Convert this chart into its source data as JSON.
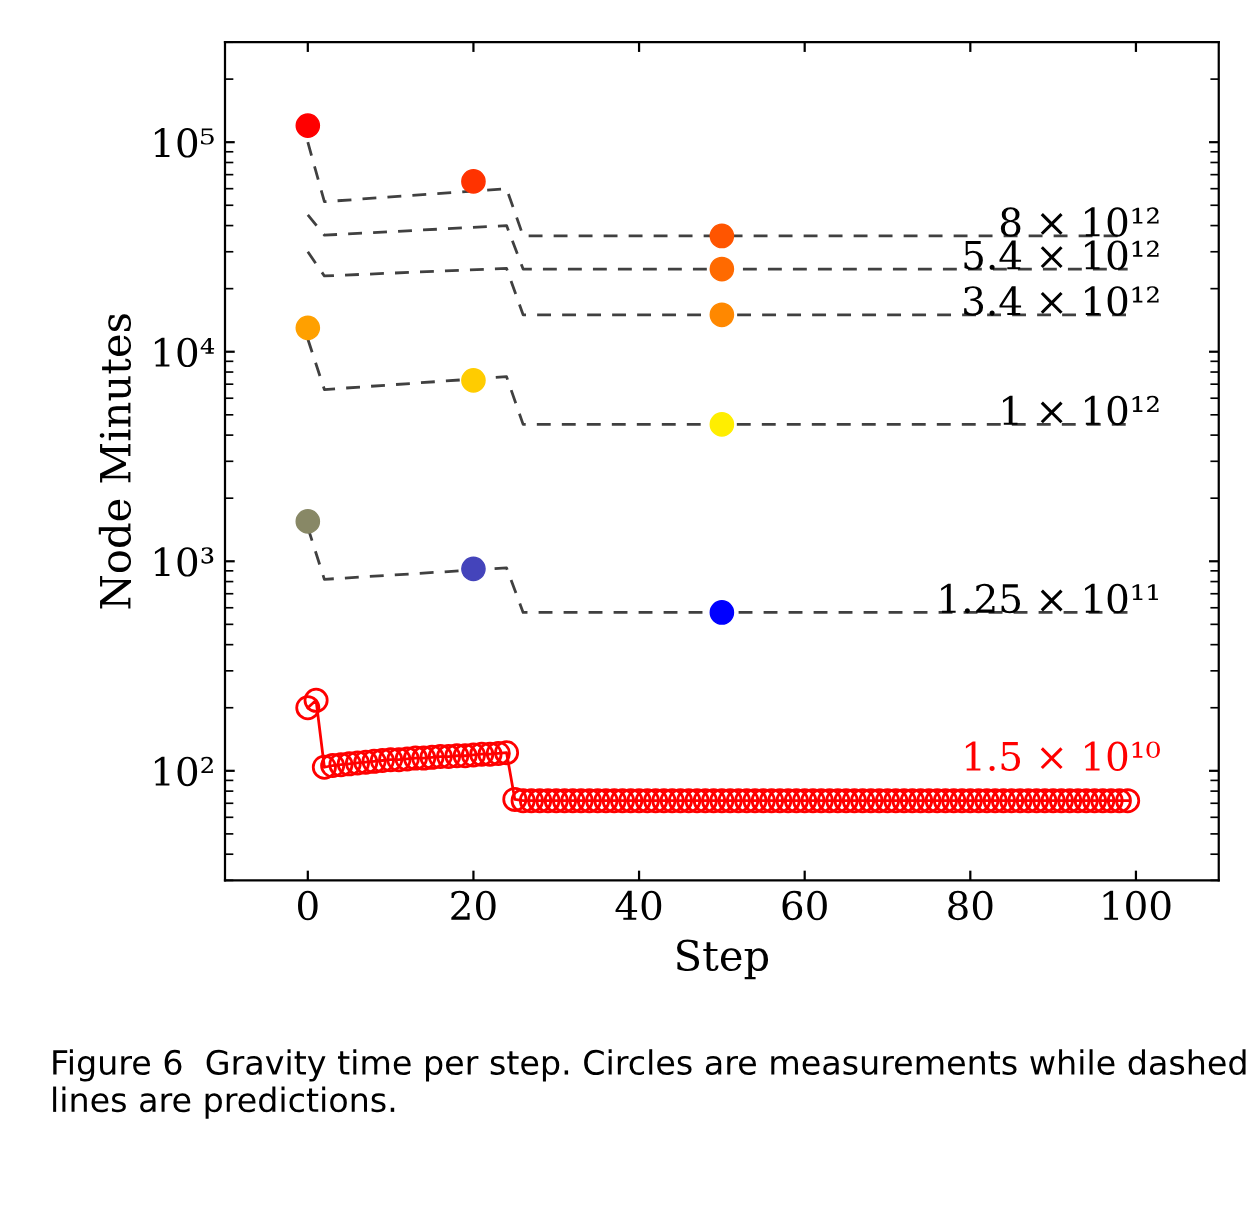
{
  "chart_data": {
    "type": "line",
    "xlabel": "Step",
    "ylabel": "Node Minutes",
    "annotations": [
      "Figure 6  Gravity time per step. Circles are measurements while dashed lines are predictions."
    ],
    "log": "y",
    "xlim": [
      -10,
      110
    ],
    "xticks": [
      0,
      20,
      40,
      60,
      80,
      100
    ],
    "ylim": [
      30,
      300000
    ],
    "yticks": [
      {
        "value": 100,
        "label": "10²"
      },
      {
        "value": 1000,
        "label": "10³"
      },
      {
        "value": 10000,
        "label": "10⁴"
      },
      {
        "value": 100000,
        "label": "10⁵"
      }
    ],
    "grid": false,
    "legend": false,
    "series": [
      {
        "name": "8 × 10¹²",
        "line_style": "dashed",
        "marker": "none",
        "color": "#404040",
        "x": [
          0,
          2,
          24,
          26,
          99
        ],
        "values": [
          100000,
          52000,
          60000,
          35700,
          35700
        ]
      },
      {
        "name": "5.4 × 10¹²",
        "line_style": "dashed",
        "marker": "none",
        "color": "#404040",
        "x": [
          0,
          2,
          24,
          26,
          99
        ],
        "values": [
          45000,
          36000,
          40000,
          24800,
          24800
        ]
      },
      {
        "name": "3.4 × 10¹²",
        "line_style": "dashed",
        "marker": "none",
        "color": "#404040",
        "x": [
          0,
          2,
          24,
          26,
          99
        ],
        "values": [
          30000,
          23000,
          25000,
          15000,
          15000
        ]
      },
      {
        "name": "1 × 10¹²",
        "line_style": "dashed",
        "marker": "none",
        "color": "#404040",
        "x": [
          0,
          2,
          24,
          26,
          99
        ],
        "values": [
          11500,
          6600,
          7600,
          4500,
          4500
        ]
      },
      {
        "name": "1.25 × 10¹¹",
        "line_style": "dashed",
        "marker": "none",
        "color": "#404040",
        "x": [
          0,
          2,
          24,
          26,
          99
        ],
        "values": [
          1450,
          820,
          930,
          570,
          570
        ]
      },
      {
        "type": "scatter",
        "marker": "circle",
        "x": [
          0,
          20,
          50,
          50,
          50,
          0,
          20,
          50,
          0,
          20,
          50
        ],
        "values": [
          120000,
          65000,
          35700,
          24800,
          15000,
          13000,
          7300,
          4500,
          1550,
          920,
          570
        ],
        "colors": [
          "#ff0000",
          "#ff3300",
          "#ff5500",
          "#ff6a00",
          "#ff8800",
          "#ffa000",
          "#ffcc00",
          "#ffee00",
          "#888866",
          "#4444bb",
          "#0000ff"
        ]
      },
      {
        "name": "1.5 × 10¹⁰",
        "line_style": "solid",
        "marker": "circle",
        "color": "#ff0000",
        "x": [
          0,
          1,
          2,
          3,
          4,
          5,
          6,
          7,
          8,
          9,
          10,
          11,
          12,
          13,
          14,
          15,
          16,
          17,
          18,
          19,
          20,
          21,
          22,
          23,
          24,
          25,
          26,
          27,
          28,
          29,
          30,
          31,
          32,
          33,
          34,
          35,
          36,
          37,
          38,
          39,
          40,
          41,
          42,
          43,
          44,
          45,
          46,
          47,
          48,
          49,
          50,
          51,
          52,
          53,
          54,
          55,
          56,
          57,
          58,
          59,
          60,
          61,
          62,
          63,
          64,
          65,
          66,
          67,
          68,
          69,
          70,
          71,
          72,
          73,
          74,
          75,
          76,
          77,
          78,
          79,
          80,
          81,
          82,
          83,
          84,
          85,
          86,
          87,
          88,
          89,
          90,
          91,
          92,
          93,
          94,
          95,
          96,
          97,
          98,
          99
        ],
        "values": [
          200,
          217,
          104,
          106,
          107,
          108,
          109,
          110,
          111,
          112,
          113,
          113,
          114,
          115,
          115,
          116,
          117,
          117,
          118,
          118,
          119,
          120,
          120,
          121,
          122,
          73,
          72,
          72,
          72,
          72,
          72,
          72,
          72,
          72,
          72,
          72,
          72,
          72,
          72,
          72,
          72,
          72,
          72,
          72,
          72,
          72,
          72,
          72,
          72,
          72,
          72,
          72,
          72,
          72,
          72,
          72,
          72,
          72,
          72,
          72,
          72,
          72,
          72,
          72,
          72,
          72,
          72,
          72,
          72,
          72,
          72,
          72,
          72,
          72,
          72,
          72,
          72,
          72,
          72,
          72,
          72,
          72,
          72,
          72,
          72,
          72,
          72,
          72,
          72,
          72,
          72,
          72,
          72,
          72,
          72,
          72,
          72,
          72,
          72,
          72
        ]
      }
    ]
  }
}
